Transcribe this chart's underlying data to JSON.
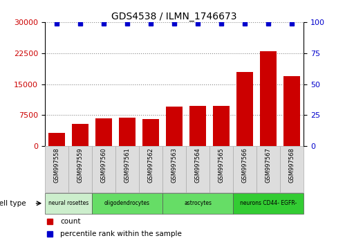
{
  "title": "GDS4538 / ILMN_1746673",
  "samples": [
    "GSM997558",
    "GSM997559",
    "GSM997560",
    "GSM997561",
    "GSM997562",
    "GSM997563",
    "GSM997564",
    "GSM997565",
    "GSM997566",
    "GSM997567",
    "GSM997568"
  ],
  "counts": [
    3200,
    5300,
    6800,
    6900,
    6500,
    9500,
    9800,
    9700,
    18000,
    23000,
    17000
  ],
  "percentile_ranks": [
    99,
    99,
    99,
    99,
    99,
    99,
    99,
    99,
    99,
    99,
    99
  ],
  "bar_color": "#cc0000",
  "dot_color": "#0000cc",
  "ylim_left": [
    0,
    30000
  ],
  "ylim_right": [
    0,
    100
  ],
  "yticks_left": [
    0,
    7500,
    15000,
    22500,
    30000
  ],
  "yticks_right": [
    0,
    25,
    50,
    75,
    100
  ],
  "cell_groups": [
    {
      "label": "neural rosettes",
      "start": 0,
      "end": 1,
      "color": "#cceecc"
    },
    {
      "label": "oligodendrocytes",
      "start": 2,
      "end": 4,
      "color": "#66dd66"
    },
    {
      "label": "astrocytes",
      "start": 5,
      "end": 7,
      "color": "#66dd66"
    },
    {
      "label": "neurons CD44- EGFR-",
      "start": 8,
      "end": 10,
      "color": "#33cc33"
    }
  ],
  "cell_type_label": "cell type",
  "legend_count_label": "count",
  "legend_percentile_label": "percentile rank within the sample",
  "background_color": "#ffffff",
  "grid_color": "#888888",
  "tick_label_color_left": "#cc0000",
  "tick_label_color_right": "#0000cc",
  "sample_box_color": "#dddddd",
  "sample_box_edge": "#aaaaaa",
  "cell_box_edge": "#555555"
}
